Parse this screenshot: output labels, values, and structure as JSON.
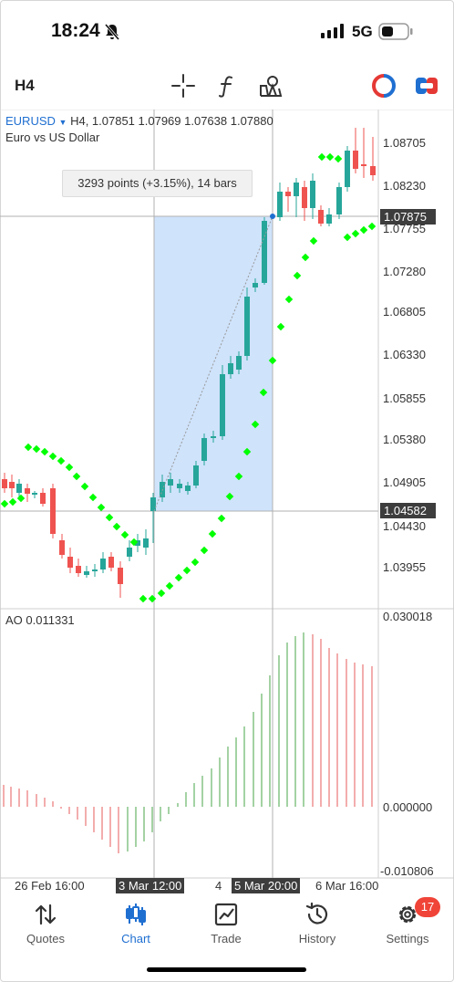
{
  "status_bar": {
    "time": "18:24",
    "network": "5G"
  },
  "toolbar": {
    "timeframe": "H4",
    "icons": [
      "crosshair-icon",
      "function-icon",
      "objects-icon",
      "one-click-trading-icon",
      "account-icon"
    ]
  },
  "chart": {
    "symbol": "EURUSD",
    "header": "H4, 1.07851 1.07969 1.07638 1.07880",
    "description": "Euro vs US Dollar",
    "measure_tooltip": "3293 points (+3.15%), 14 bars",
    "price_labels": [
      "1.08705",
      "1.08230",
      "1.07755",
      "1.07280",
      "1.06805",
      "1.06330",
      "1.05855",
      "1.05380",
      "1.04905",
      "1.04430",
      "1.03955"
    ],
    "price_markers": [
      "1.07875",
      "1.04582"
    ],
    "indicator_label": "AO 0.011331",
    "indicator_levels": [
      "0.030018",
      "0.000000",
      "-0.010806"
    ],
    "date_labels": [
      "26 Feb 16:00",
      "4",
      "6 Mar 16:00"
    ],
    "date_markers": [
      "3 Mar 12:00",
      "5 Mar 20:00"
    ],
    "colors": {
      "bull": "#26a69a",
      "bear": "#ef5350",
      "sar": "#00ff00",
      "selection": "#cfe3fb",
      "accent": "#1f6fd1"
    }
  },
  "tabbar": {
    "tabs": [
      {
        "label": "Quotes",
        "icon": "quotes-icon",
        "active": false
      },
      {
        "label": "Chart",
        "icon": "chart-icon",
        "active": true
      },
      {
        "label": "Trade",
        "icon": "trade-icon",
        "active": false
      },
      {
        "label": "History",
        "icon": "history-icon",
        "active": false
      },
      {
        "label": "Settings",
        "icon": "gear-icon",
        "active": false
      }
    ],
    "settings_badge": "17"
  }
}
